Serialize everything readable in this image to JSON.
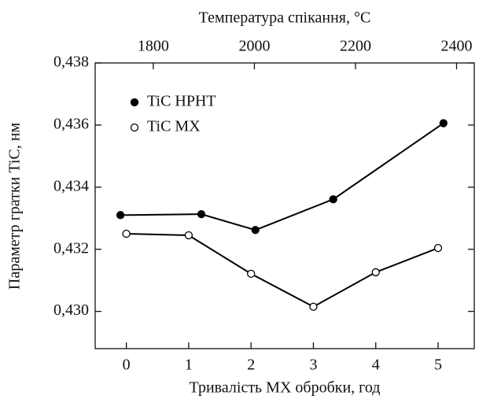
{
  "chart_data": {
    "type": "line",
    "xlabel": "Тривалість МХ обробки, год",
    "x2label": "Температура спікання, °C",
    "ylabel": "Параметр гратки TiC, нм",
    "xlim": [
      -0.5,
      5.58
    ],
    "xticks": [
      0,
      1,
      2,
      3,
      4,
      5
    ],
    "x2lim": [
      1685,
      2435
    ],
    "x2ticks": [
      1800,
      2000,
      2200,
      2400
    ],
    "ylim": [
      0.4288,
      0.438
    ],
    "yticks": [
      {
        "value": 0.43,
        "label": "0,430"
      },
      {
        "value": 0.432,
        "label": "0,432"
      },
      {
        "value": 0.434,
        "label": "0,434"
      },
      {
        "value": 0.436,
        "label": "0,436"
      },
      {
        "value": 0.438,
        "label": "0,438"
      }
    ],
    "legend": "upper left",
    "series": [
      {
        "name": "TiC HPHT",
        "xaxis": "x2",
        "color": "#000",
        "marker_fill": "#000",
        "x": [
          1735,
          1895,
          2002,
          2156,
          2374
        ],
        "values": [
          0.4331,
          0.43313,
          0.43262,
          0.43361,
          0.43606
        ]
      },
      {
        "name": "TiC MX",
        "xaxis": "x",
        "color": "#000",
        "marker_fill": "#fff",
        "x": [
          0,
          1,
          2,
          3,
          4,
          5
        ],
        "values": [
          0.4325,
          0.43245,
          0.43121,
          0.43015,
          0.43126,
          0.43204
        ]
      }
    ]
  }
}
